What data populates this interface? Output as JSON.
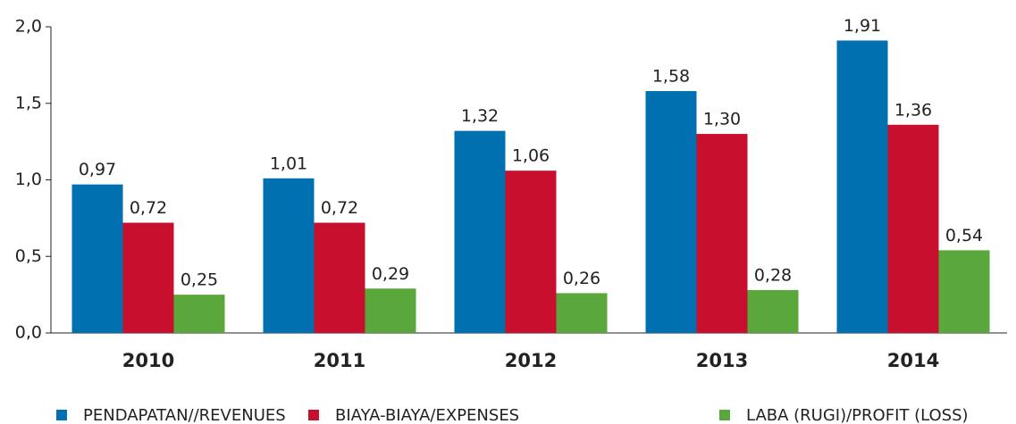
{
  "chart_data": {
    "type": "bar",
    "categories": [
      "2010",
      "2011",
      "2012",
      "2013",
      "2014"
    ],
    "series": [
      {
        "name": "PENDAPATAN//REVENUES",
        "color": "#0070b0",
        "values": [
          0.97,
          1.01,
          1.32,
          1.58,
          1.91
        ],
        "value_labels": [
          "0,97",
          "1,01",
          "1,32",
          "1,58",
          "1,91"
        ]
      },
      {
        "name": "BIAYA-BIAYA/EXPENSES",
        "color": "#c8102e",
        "values": [
          0.72,
          0.72,
          1.06,
          1.3,
          1.36
        ],
        "value_labels": [
          "0,72",
          "0,72",
          "1,06",
          "1,30",
          "1,36"
        ]
      },
      {
        "name": "LABA (RUGI)/PROFIT (LOSS)",
        "color": "#5aa73c",
        "values": [
          0.25,
          0.29,
          0.26,
          0.28,
          0.54
        ],
        "value_labels": [
          "0,25",
          "0,29",
          "0,26",
          "0,28",
          "0,54"
        ]
      }
    ],
    "ylim": [
      0,
      2
    ],
    "yticks": [
      {
        "value": 0,
        "label": "0,0"
      },
      {
        "value": 0.5,
        "label": "0,5"
      },
      {
        "value": 1,
        "label": "1,0"
      },
      {
        "value": 1.5,
        "label": "1,5"
      },
      {
        "value": 2,
        "label": "2,0"
      }
    ],
    "legend": "bottom"
  }
}
